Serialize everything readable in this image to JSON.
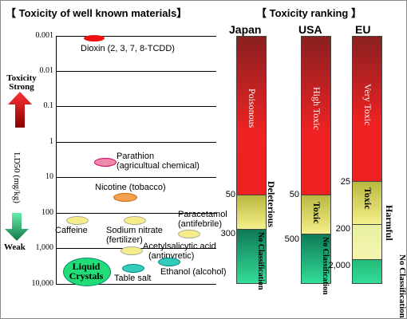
{
  "left_title": "【 Toxicity of well known materials】",
  "right_title": "【 Toxicity ranking 】",
  "y_axis_label": "LD50 (mg/kg)",
  "strong_label": "Toxicity Strong",
  "weak_label": "Weak",
  "ticks": [
    "0.001",
    "0.01",
    "0.1",
    "1",
    "10",
    "100",
    "1,000",
    "10,000"
  ],
  "materials": {
    "dioxin": "Dioxin (2, 3, 7, 8-TCDD)",
    "parathion1": "Parathion",
    "parathion2": "(agricultual chemical)",
    "nicotine": "Nicotine (tobacco)",
    "paracetamol1": "Paracetamol",
    "paracetamol2": "(antifebrile)",
    "caffeine": "Caffeine",
    "sodium1": "Sodium nitrate",
    "sodium2": "(fertilizer)",
    "acetyl1": "Acetylsalicytic acid",
    "acetyl2": "(antipyretic)",
    "liquid1": "Liquid",
    "liquid2": "Crystals",
    "salt": "Table salt",
    "ethanol": "Ethanol (alcohol)"
  },
  "colors": {
    "dioxin": "#ee1111",
    "parathion": "#ee8aa8",
    "nicotine": "#f0a050",
    "yellow": "#f5ec8a",
    "liquid": "#22dd77",
    "teal": "#33ccbb"
  },
  "ranking": {
    "japan": {
      "name": "Japan",
      "top_label": "Poisonous",
      "mid_label": "Deleterious",
      "low_label": "No Classification",
      "thresholds": [
        "50",
        "300"
      ]
    },
    "usa": {
      "name": "USA",
      "top_label": "High Toxic",
      "mid_label": "Toxic",
      "low_label": "No Classification",
      "thresholds": [
        "50",
        "500"
      ]
    },
    "eu": {
      "name": "EU",
      "top_label": "Very Toxic",
      "mid_label": "Toxic",
      "side_label": "Harmful",
      "low_label": "No Classification",
      "thresholds": [
        "25",
        "200",
        "2,000"
      ]
    }
  }
}
